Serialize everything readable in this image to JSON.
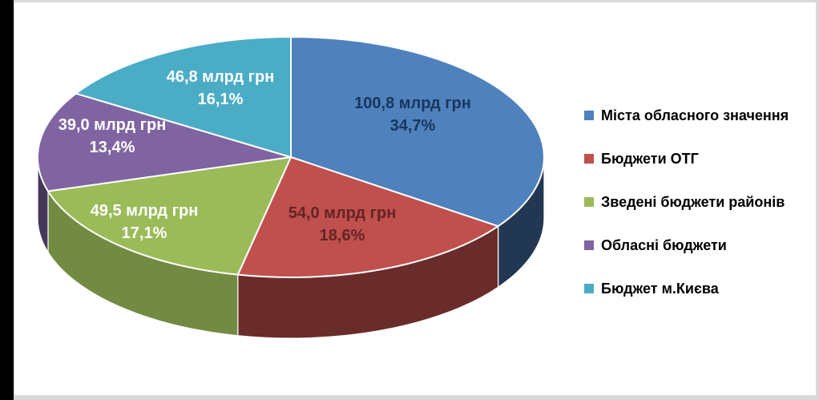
{
  "chart_data": {
    "type": "pie",
    "style": "3d",
    "title": "",
    "legend_position": "right",
    "direction": "clockwise",
    "start_angle_deg": 0,
    "unit": "млрд грн",
    "slices": [
      {
        "legend": "Міста обласного значення",
        "value": 100.8,
        "percent": 34.7,
        "value_label": "100,8 млрд грн",
        "percent_label": "34,7%",
        "color": "#4F81BD",
        "label_color": "#17375E"
      },
      {
        "legend": "Бюджети ОТГ",
        "value": 54.0,
        "percent": 18.6,
        "value_label": "54,0 млрд грн",
        "percent_label": "18,6%",
        "color": "#C0504D",
        "label_color": "#632423"
      },
      {
        "legend": "Зведені бюджети районів",
        "value": 49.5,
        "percent": 17.1,
        "value_label": "49,5 млрд грн",
        "percent_label": "17,1%",
        "color": "#9BBB59",
        "label_color": "#FFFFFF"
      },
      {
        "legend": "Обласні бюджети",
        "value": 39.0,
        "percent": 13.4,
        "value_label": "39,0 млрд грн",
        "percent_label": "13,4%",
        "color": "#8064A2",
        "label_color": "#FFFFFF"
      },
      {
        "legend": "Бюджет м.Києва",
        "value": 46.8,
        "percent": 16.1,
        "value_label": "46,8 млрд грн",
        "percent_label": "16,1%",
        "color": "#4BACC6",
        "label_color": "#FFFFFF"
      }
    ]
  }
}
